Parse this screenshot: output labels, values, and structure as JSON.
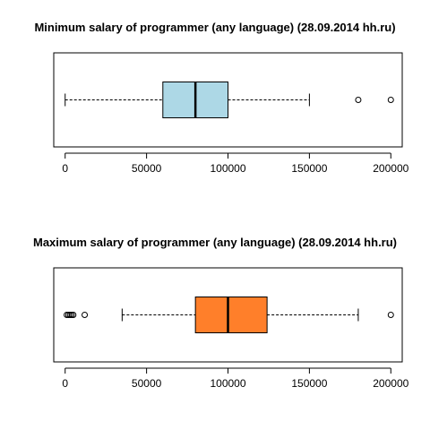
{
  "chart_data": [
    {
      "type": "boxplot",
      "title": "Minimum salary of programmer (any language) (28.09.2014 hh.ru)",
      "orientation": "horizontal",
      "xlim": [
        -7000,
        207000
      ],
      "ticks": [
        0,
        50000,
        100000,
        150000,
        200000
      ],
      "tick_labels": [
        "0",
        "50000",
        "100000",
        "150000",
        "200000"
      ],
      "box": {
        "whisker_low": 0,
        "q1": 60000,
        "median": 80000,
        "q3": 100000,
        "whisker_high": 150000
      },
      "outliers": [
        180000,
        200000
      ],
      "box_color": "#ADD8E6"
    },
    {
      "type": "boxplot",
      "title": "Maximum salary of programmer (any language) (28.09.2014 hh.ru)",
      "orientation": "horizontal",
      "xlim": [
        -7000,
        207000
      ],
      "ticks": [
        0,
        50000,
        100000,
        150000,
        200000
      ],
      "tick_labels": [
        "0",
        "50000",
        "100000",
        "150000",
        "200000"
      ],
      "box": {
        "whisker_low": 35000,
        "q1": 80000,
        "median": 100000,
        "q3": 124000,
        "whisker_high": 180000
      },
      "outliers": [
        1000,
        2000,
        3000,
        4000,
        5000,
        12000,
        200000
      ],
      "box_color": "#FF7F2A"
    }
  ]
}
